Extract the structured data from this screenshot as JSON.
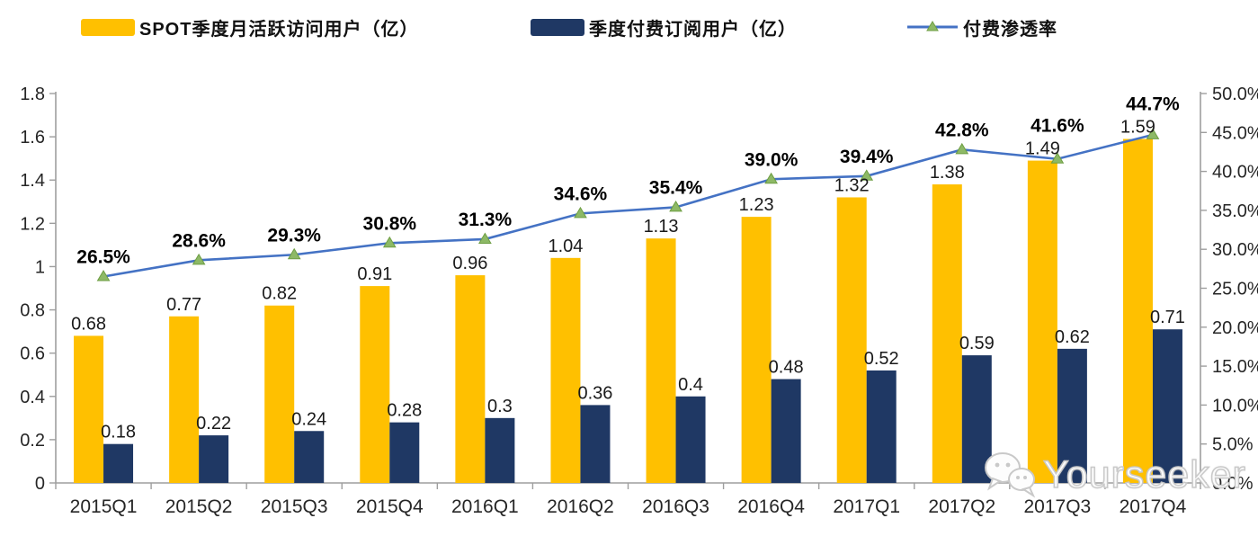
{
  "legend": [
    {
      "label": "SPOT季度月活跃访问用户（亿）",
      "type": "bar",
      "color": "#FFC000"
    },
    {
      "label": "季度付费订阅用户（亿）",
      "type": "bar",
      "color": "#1F3864"
    },
    {
      "label": "付费渗透率",
      "type": "line",
      "color": "#4472C4",
      "marker_color": "#8DB966"
    }
  ],
  "watermark": {
    "text": "Yourseeker",
    "icon": "wechat-icon"
  },
  "colors": {
    "mau_bar": "#FFC000",
    "subs_bar": "#1F3864",
    "line": "#4472C4",
    "marker_fill": "#8DB966",
    "marker_stroke": "#6E9E43",
    "axis": "#9E9E9E",
    "tick_label": "#262626",
    "value_label": "#1a1a1a",
    "pct_label": "#000000"
  },
  "chart_data": {
    "type": "bar",
    "categories": [
      "2015Q1",
      "2015Q2",
      "2015Q3",
      "2015Q4",
      "2016Q1",
      "2016Q2",
      "2016Q3",
      "2016Q4",
      "2017Q1",
      "2017Q2",
      "2017Q3",
      "2017Q4"
    ],
    "series": [
      {
        "name": "SPOT季度月活跃访问用户（亿）",
        "type": "bar",
        "axis": "left",
        "color": "#FFC000",
        "values": [
          0.68,
          0.77,
          0.82,
          0.91,
          0.96,
          1.04,
          1.13,
          1.23,
          1.32,
          1.38,
          1.49,
          1.59
        ],
        "labels": [
          "0.68",
          "0.77",
          "0.82",
          "0.91",
          "0.96",
          "1.04",
          "1.13",
          "1.23",
          "1.32",
          "1.38",
          "1.49",
          "1.59"
        ]
      },
      {
        "name": "季度付费订阅用户（亿）",
        "type": "bar",
        "axis": "left",
        "color": "#1F3864",
        "values": [
          0.18,
          0.22,
          0.24,
          0.28,
          0.3,
          0.36,
          0.4,
          0.48,
          0.52,
          0.59,
          0.62,
          0.71
        ],
        "labels": [
          "0.18",
          "0.22",
          "0.24",
          "0.28",
          "0.3",
          "0.36",
          "0.4",
          "0.48",
          "0.52",
          "0.59",
          "0.62",
          "0.71"
        ]
      },
      {
        "name": "付费渗透率",
        "type": "line",
        "axis": "right",
        "color": "#4472C4",
        "values": [
          26.5,
          28.6,
          29.3,
          30.8,
          31.3,
          34.6,
          35.4,
          39.0,
          39.4,
          42.8,
          41.6,
          44.7
        ],
        "labels": [
          "26.5%",
          "28.6%",
          "29.3%",
          "30.8%",
          "31.3%",
          "34.6%",
          "35.4%",
          "39.0%",
          "39.4%",
          "42.8%",
          "41.6%",
          "44.7%"
        ]
      }
    ],
    "left_axis": {
      "min": 0,
      "max": 1.8,
      "ticks": [
        "0",
        "0.2",
        "0.4",
        "0.6",
        "0.8",
        "1",
        "1.2",
        "1.4",
        "1.6",
        "1.8"
      ]
    },
    "right_axis": {
      "min": 0,
      "max": 50,
      "ticks": [
        "0.0%",
        "5.0%",
        "10.0%",
        "15.0%",
        "20.0%",
        "25.0%",
        "30.0%",
        "35.0%",
        "40.0%",
        "45.0%",
        "50.0%"
      ]
    },
    "grid": false,
    "legend_position": "top"
  }
}
